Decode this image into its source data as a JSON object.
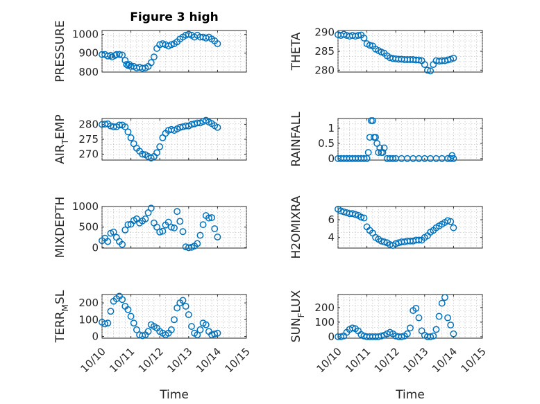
{
  "figure": {
    "title": "Figure 3 high"
  },
  "chart_data": [
    {
      "type": "scatter",
      "ylabel": "PRESSURE",
      "ylabel_sub": "",
      "ylim": [
        800,
        1020
      ],
      "yticks": [
        "800",
        "900",
        "1000"
      ],
      "ytick_values": [
        800,
        900,
        1000
      ],
      "xlim": [
        0,
        5
      ],
      "grid": true,
      "marker_color": "#0072BD",
      "x": [
        0.0,
        0.1,
        0.2,
        0.3,
        0.35,
        0.45,
        0.5,
        0.6,
        0.7,
        0.8,
        0.85,
        0.9,
        0.95,
        1.0,
        1.1,
        1.2,
        1.3,
        1.4,
        1.5,
        1.6,
        1.7,
        1.8,
        1.9,
        2.0,
        2.1,
        2.2,
        2.3,
        2.4,
        2.5,
        2.6,
        2.7,
        2.8,
        2.9,
        3.0,
        3.1,
        3.2,
        3.3,
        3.4,
        3.5,
        3.6,
        3.7,
        3.8,
        3.9,
        4.0
      ],
      "y": [
        893,
        893,
        885,
        888,
        880,
        888,
        893,
        893,
        890,
        862,
        840,
        835,
        840,
        830,
        830,
        822,
        825,
        820,
        822,
        830,
        850,
        880,
        925,
        945,
        950,
        945,
        938,
        945,
        950,
        960,
        975,
        985,
        995,
        1000,
        995,
        985,
        995,
        985,
        985,
        980,
        985,
        975,
        965,
        950
      ]
    },
    {
      "type": "scatter",
      "ylabel": "THETA",
      "ylabel_sub": "",
      "ylim": [
        279.5,
        290.5
      ],
      "yticks": [
        "280",
        "285",
        "290"
      ],
      "ytick_values": [
        280,
        285,
        290
      ],
      "xlim": [
        0,
        5
      ],
      "grid": true,
      "marker_color": "#0072BD",
      "x": [
        0.0,
        0.1,
        0.2,
        0.3,
        0.4,
        0.5,
        0.6,
        0.7,
        0.8,
        0.9,
        1.0,
        1.1,
        1.2,
        1.3,
        1.4,
        1.5,
        1.6,
        1.7,
        1.8,
        1.9,
        2.0,
        2.1,
        2.2,
        2.3,
        2.4,
        2.5,
        2.6,
        2.7,
        2.8,
        2.9,
        3.0,
        3.1,
        3.2,
        3.3,
        3.4,
        3.5,
        3.6,
        3.7,
        3.8,
        3.9,
        4.0
      ],
      "y": [
        289.4,
        289.2,
        289.5,
        289.2,
        289.0,
        289.2,
        289.0,
        289.2,
        289.3,
        288.5,
        287.0,
        286.6,
        286.4,
        285.6,
        285.2,
        284.8,
        284.5,
        283.8,
        283.3,
        283.1,
        283.0,
        282.9,
        282.9,
        282.8,
        282.8,
        282.8,
        282.8,
        282.7,
        282.7,
        282.5,
        281.5,
        280.0,
        279.8,
        281.5,
        282.5,
        282.4,
        282.5,
        282.5,
        282.7,
        282.9,
        283.2
      ]
    },
    {
      "type": "scatter",
      "ylabel": "AIR",
      "ylabel_sub": "T",
      "ylabel_suffix": "EMP",
      "ylim": [
        268,
        282
      ],
      "yticks": [
        "270",
        "275",
        "280"
      ],
      "ytick_values": [
        270,
        275,
        280
      ],
      "xlim": [
        0,
        5
      ],
      "grid": true,
      "marker_color": "#0072BD",
      "x": [
        0.0,
        0.1,
        0.2,
        0.3,
        0.4,
        0.5,
        0.6,
        0.7,
        0.8,
        0.9,
        1.0,
        1.1,
        1.2,
        1.3,
        1.4,
        1.5,
        1.6,
        1.7,
        1.8,
        1.9,
        2.0,
        2.1,
        2.2,
        2.3,
        2.4,
        2.5,
        2.6,
        2.7,
        2.8,
        2.9,
        3.0,
        3.1,
        3.2,
        3.3,
        3.4,
        3.5,
        3.6,
        3.7,
        3.8,
        3.9,
        4.0
      ],
      "y": [
        280.0,
        280.1,
        280.2,
        279.5,
        279.2,
        279.2,
        279.8,
        279.8,
        279.2,
        277.5,
        275.5,
        273.5,
        272.0,
        271.0,
        270.0,
        269.8,
        269.2,
        268.7,
        269.2,
        270.5,
        272.5,
        275.5,
        277.0,
        278.0,
        278.3,
        278.0,
        278.5,
        279.0,
        279.2,
        279.5,
        279.5,
        280.0,
        280.2,
        280.5,
        280.5,
        281.0,
        281.4,
        280.8,
        280.3,
        279.6,
        279.0
      ]
    },
    {
      "type": "scatter",
      "ylabel": "RAINFALL",
      "ylabel_sub": "",
      "ylim": [
        -0.05,
        1.32
      ],
      "yticks": [
        "0",
        "0.5",
        "1"
      ],
      "ytick_values": [
        0,
        0.5,
        1
      ],
      "xlim": [
        0,
        5
      ],
      "grid": true,
      "marker_color": "#0072BD",
      "x": [
        0.0,
        0.1,
        0.2,
        0.3,
        0.4,
        0.5,
        0.6,
        0.7,
        0.8,
        0.9,
        1.0,
        1.05,
        1.1,
        1.15,
        1.2,
        1.25,
        1.3,
        1.35,
        1.4,
        1.45,
        1.5,
        1.55,
        1.6,
        1.7,
        1.8,
        1.9,
        2.0,
        2.2,
        2.4,
        2.6,
        2.8,
        3.0,
        3.2,
        3.4,
        3.6,
        3.8,
        3.9,
        3.95,
        4.0
      ],
      "y": [
        0,
        0,
        0,
        0,
        0,
        0,
        0,
        0,
        0,
        0,
        0,
        0.2,
        0.7,
        1.25,
        1.25,
        0.7,
        0.7,
        0.5,
        0.2,
        0.35,
        0.2,
        0.2,
        0.35,
        0,
        0,
        0,
        0,
        0,
        0,
        0,
        0,
        0,
        0,
        0,
        0,
        0,
        0,
        0.1,
        0
      ]
    },
    {
      "type": "scatter",
      "ylabel": "MIXDEPTH",
      "ylabel_sub": "",
      "ylim": [
        -10,
        1000
      ],
      "yticks": [
        "0",
        "500",
        "1000"
      ],
      "ytick_values": [
        0,
        500,
        1000
      ],
      "xlim": [
        0,
        5
      ],
      "grid": true,
      "marker_color": "#0072BD",
      "x": [
        0.0,
        0.1,
        0.2,
        0.3,
        0.4,
        0.5,
        0.6,
        0.7,
        0.8,
        0.9,
        1.0,
        1.1,
        1.2,
        1.3,
        1.4,
        1.5,
        1.6,
        1.7,
        1.8,
        1.9,
        2.0,
        2.1,
        2.2,
        2.3,
        2.4,
        2.5,
        2.6,
        2.7,
        2.8,
        2.9,
        3.0,
        3.1,
        3.2,
        3.3,
        3.4,
        3.5,
        3.6,
        3.7,
        3.8,
        3.9,
        4.0
      ],
      "y": [
        170,
        230,
        150,
        350,
        380,
        250,
        150,
        80,
        430,
        560,
        570,
        660,
        700,
        600,
        650,
        700,
        850,
        960,
        600,
        500,
        380,
        400,
        550,
        620,
        500,
        480,
        880,
        640,
        390,
        20,
        0,
        10,
        40,
        100,
        300,
        560,
        780,
        720,
        730,
        460,
        260
      ]
    },
    {
      "type": "scatter",
      "ylabel": "H2OMIXRA",
      "ylabel_sub": "",
      "ylim": [
        2.8,
        7.5
      ],
      "yticks": [
        "4",
        "6"
      ],
      "ytick_values": [
        4,
        6
      ],
      "xlim": [
        0,
        5
      ],
      "grid": true,
      "marker_color": "#0072BD",
      "x": [
        0.0,
        0.1,
        0.2,
        0.3,
        0.4,
        0.5,
        0.6,
        0.7,
        0.8,
        0.9,
        1.0,
        1.1,
        1.2,
        1.3,
        1.4,
        1.5,
        1.6,
        1.7,
        1.8,
        1.9,
        2.0,
        2.1,
        2.2,
        2.3,
        2.4,
        2.5,
        2.6,
        2.7,
        2.8,
        2.9,
        3.0,
        3.1,
        3.2,
        3.3,
        3.4,
        3.5,
        3.6,
        3.7,
        3.8,
        3.9,
        4.0
      ],
      "y": [
        7.2,
        7.0,
        6.9,
        6.8,
        6.7,
        6.7,
        6.6,
        6.5,
        6.3,
        6.2,
        5.2,
        4.8,
        4.5,
        4.0,
        3.8,
        3.6,
        3.5,
        3.4,
        3.2,
        3.1,
        3.3,
        3.4,
        3.5,
        3.5,
        3.6,
        3.6,
        3.6,
        3.7,
        3.7,
        3.7,
        4.0,
        4.2,
        4.6,
        4.8,
        5.1,
        5.3,
        5.5,
        5.7,
        5.9,
        5.8,
        5.1
      ]
    },
    {
      "type": "scatter",
      "ylabel": "TERR",
      "ylabel_sub": "M",
      "ylabel_suffix": "SL",
      "ylim": [
        -10,
        250
      ],
      "yticks": [
        "0",
        "100",
        "200"
      ],
      "ytick_values": [
        0,
        100,
        200
      ],
      "xlim": [
        0,
        5
      ],
      "grid": true,
      "marker_color": "#0072BD",
      "x": [
        0.0,
        0.1,
        0.2,
        0.3,
        0.4,
        0.5,
        0.6,
        0.7,
        0.8,
        0.9,
        1.0,
        1.1,
        1.2,
        1.3,
        1.4,
        1.5,
        1.6,
        1.7,
        1.8,
        1.9,
        2.0,
        2.1,
        2.2,
        2.3,
        2.4,
        2.5,
        2.6,
        2.7,
        2.8,
        2.9,
        3.0,
        3.1,
        3.2,
        3.3,
        3.4,
        3.5,
        3.6,
        3.7,
        3.8,
        3.9,
        4.0
      ],
      "y": [
        85,
        75,
        80,
        150,
        210,
        225,
        240,
        220,
        180,
        160,
        120,
        80,
        40,
        10,
        5,
        10,
        30,
        70,
        60,
        50,
        30,
        20,
        10,
        20,
        40,
        100,
        170,
        200,
        215,
        180,
        130,
        60,
        20,
        10,
        40,
        80,
        70,
        30,
        10,
        15,
        20
      ]
    },
    {
      "type": "scatter",
      "ylabel": "SUN",
      "ylabel_sub": "F",
      "ylabel_suffix": "LUX",
      "ylim": [
        -10,
        290
      ],
      "yticks": [
        "0",
        "100",
        "200"
      ],
      "ytick_values": [
        0,
        100,
        200
      ],
      "xlim": [
        0,
        5
      ],
      "grid": true,
      "marker_color": "#0072BD",
      "x": [
        0.0,
        0.1,
        0.2,
        0.3,
        0.4,
        0.5,
        0.6,
        0.7,
        0.8,
        0.9,
        1.0,
        1.1,
        1.2,
        1.3,
        1.4,
        1.5,
        1.6,
        1.7,
        1.8,
        1.9,
        2.0,
        2.1,
        2.2,
        2.3,
        2.4,
        2.5,
        2.6,
        2.7,
        2.8,
        2.9,
        3.0,
        3.1,
        3.2,
        3.3,
        3.4,
        3.5,
        3.6,
        3.7,
        3.8,
        3.9,
        4.0
      ],
      "y": [
        0,
        0,
        5,
        30,
        50,
        60,
        55,
        40,
        15,
        5,
        0,
        0,
        0,
        0,
        0,
        5,
        10,
        20,
        30,
        20,
        5,
        0,
        0,
        5,
        20,
        60,
        180,
        195,
        130,
        40,
        10,
        0,
        0,
        5,
        50,
        140,
        230,
        270,
        130,
        80,
        20
      ]
    }
  ],
  "x_axis": {
    "tick_labels": [
      "10/10",
      "10/11",
      "10/12",
      "10/13",
      "10/14",
      "10/15"
    ],
    "tick_values": [
      0,
      1,
      2,
      3,
      4,
      5
    ],
    "label": "Time"
  }
}
